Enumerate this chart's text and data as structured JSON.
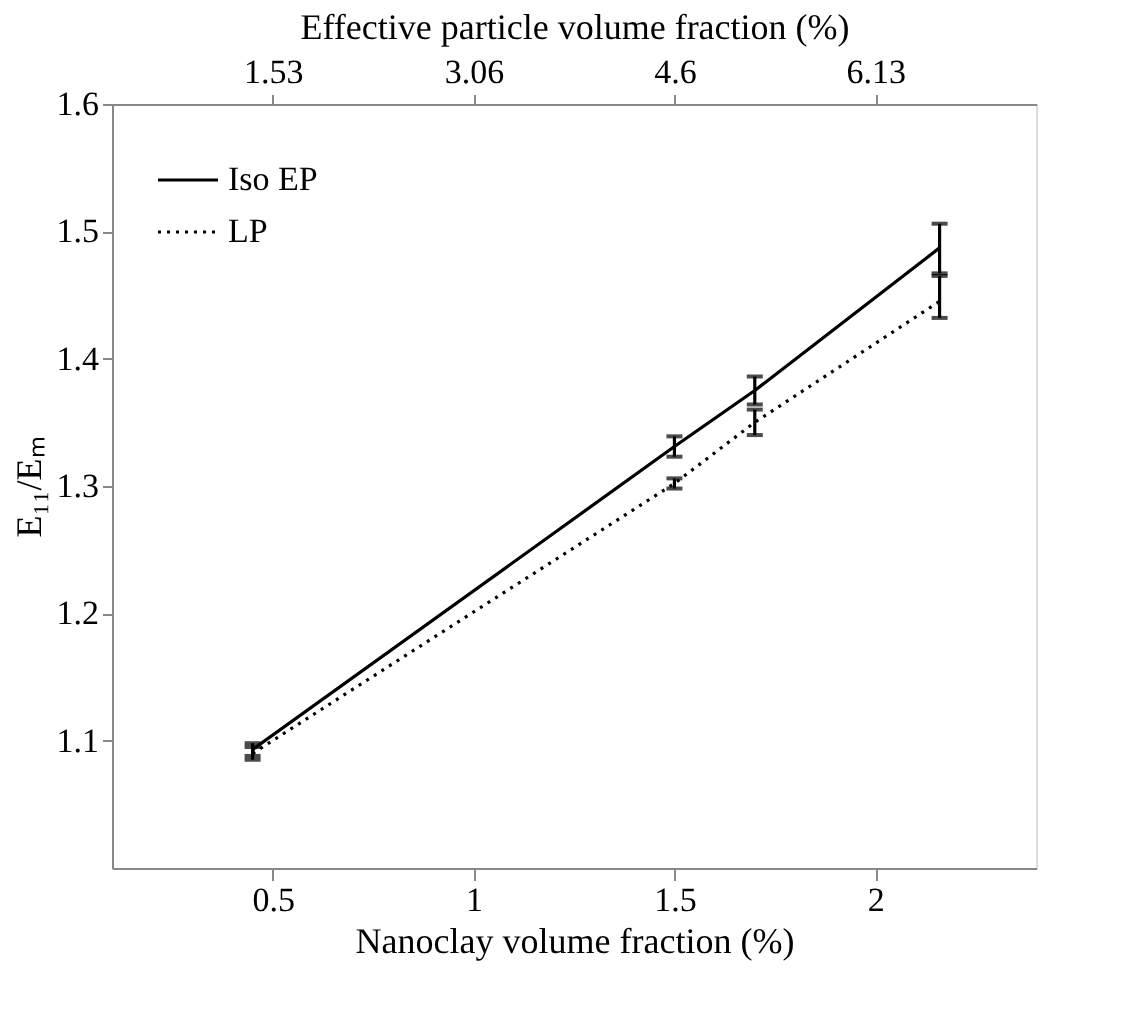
{
  "chart_data": {
    "type": "line",
    "xlabel": "Nanoclay volume fraction (%)",
    "ylabel": "E₁₁/Eₘ",
    "x2label": "Effective particle volume fraction (%)",
    "x": [
      0.45,
      1.5,
      1.7,
      2.16
    ],
    "series": [
      {
        "name": "Iso EP",
        "color": "#000000",
        "line_style": "solid",
        "values": [
          1.093,
          1.331,
          1.375,
          1.487
        ],
        "errors": [
          0.005,
          0.008,
          0.011,
          [
            1.467,
            1.506
          ]
        ]
      },
      {
        "name": "LP",
        "color": "#000000",
        "line_style": "dotted",
        "values": [
          1.09,
          1.302,
          1.35,
          1.445
        ],
        "errors": [
          0.005,
          0.004,
          0.01,
          [
            1.432,
            1.465
          ]
        ]
      }
    ],
    "xlim": [
      0.1,
      2.4
    ],
    "xticks": [
      0.5,
      1,
      1.5,
      2
    ],
    "x2lim": [
      0.3065,
      7.356
    ],
    "x2ticks": [
      {
        "value": 1.5325,
        "label": "1.53"
      },
      {
        "value": 3.065,
        "label": "3.06"
      },
      {
        "value": 4.5975,
        "label": "4.6"
      },
      {
        "value": 6.13,
        "label": "6.13"
      }
    ],
    "ylim": [
      1.0,
      1.6
    ],
    "yticks": [
      1.1,
      1.2,
      1.3,
      1.4,
      1.5,
      1.6
    ],
    "legend": "top left",
    "grid": false,
    "marker": "none"
  }
}
